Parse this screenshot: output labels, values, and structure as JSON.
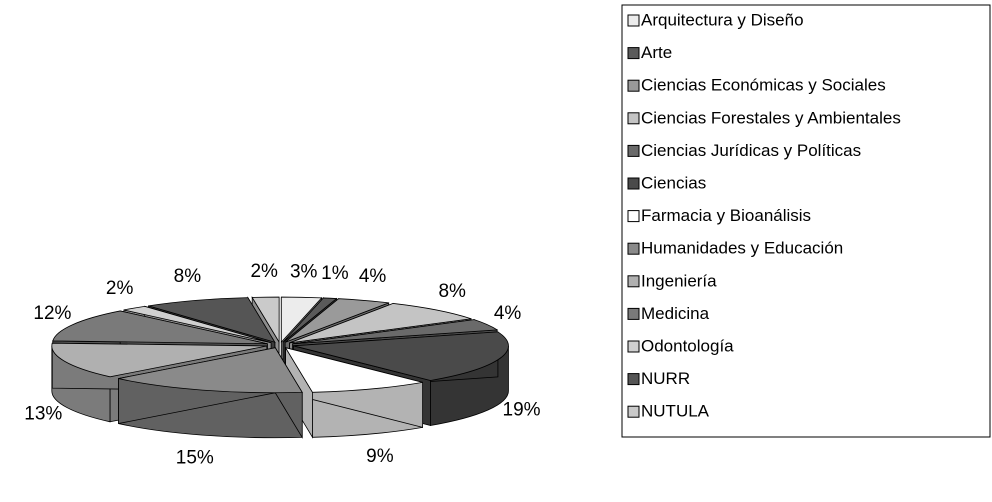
{
  "chart_data": {
    "type": "pie",
    "categories": [
      "Arquitectura y Diseño",
      "Arte",
      "Ciencias Económicas y Sociales",
      "Ciencias Forestales y Ambientales",
      "Ciencias Jurídicas y Políticas",
      "Ciencias",
      "Farmacia y Bioanálisis",
      "Humanidades y Educación",
      "Ingeniería",
      "Medicina",
      "Odontología",
      "NURR",
      "NUTULA"
    ],
    "values": [
      3,
      1,
      4,
      8,
      4,
      19,
      9,
      15,
      13,
      12,
      2,
      8,
      2
    ],
    "value_labels": [
      "3%",
      "1%",
      "4%",
      "8%",
      "4%",
      "19%",
      "9%",
      "15%",
      "13%",
      "12%",
      "2%",
      "8%",
      "2%"
    ],
    "colors": [
      "#ececec",
      "#5a5a5a",
      "#9a9a9a",
      "#c4c4c4",
      "#6a6a6a",
      "#4a4a4a",
      "#ffffff",
      "#8a8a8a",
      "#b0b0b0",
      "#7a7a7a",
      "#d0d0d0",
      "#555555",
      "#cacaca"
    ],
    "legend": "right"
  }
}
